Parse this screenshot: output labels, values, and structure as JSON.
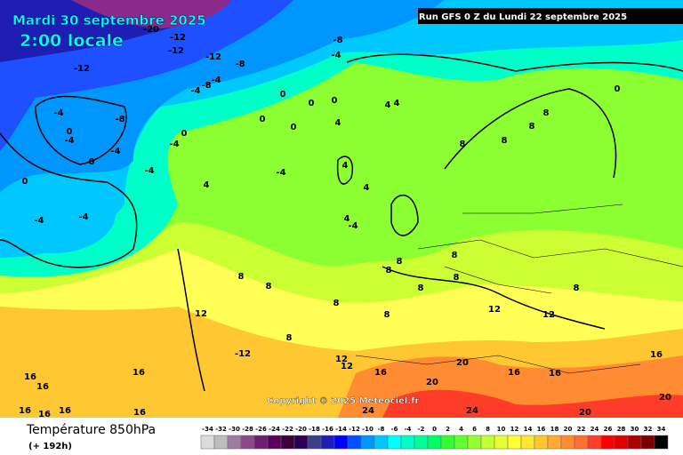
{
  "header": {
    "date": "Mardi 30 septembre 2025",
    "time": "2:00 locale",
    "run": "Run GFS 0 Z du Lundi 22 septembre 2025"
  },
  "copyright": "Copyright © 2025 Meteociel.fr",
  "footer": {
    "title": "Température 850hPa",
    "lead": "(+ 192h)"
  },
  "contour_labels": [
    -20,
    -12,
    -12,
    -12,
    -8,
    -8,
    -4,
    -12,
    -4,
    -8,
    -4,
    0,
    0,
    0,
    -8,
    -4,
    0,
    -4,
    -4,
    0,
    0,
    -4,
    -4,
    0,
    0,
    4,
    4,
    4,
    0,
    -4,
    -4,
    4,
    -4,
    4,
    4,
    4,
    -4,
    8,
    8,
    8,
    8,
    0,
    8,
    8,
    8,
    8,
    8,
    8,
    8,
    8,
    12,
    8,
    8,
    12,
    12,
    8,
    -12,
    12,
    12,
    16,
    20,
    16,
    16,
    16,
    16,
    16,
    16,
    20,
    20,
    24,
    24,
    20,
    16,
    16,
    16,
    16
  ],
  "scale": {
    "ticks": [
      -34,
      -32,
      -30,
      -28,
      -26,
      -24,
      -22,
      -20,
      -18,
      -16,
      -14,
      -12,
      -10,
      -8,
      -6,
      -4,
      -2,
      0,
      2,
      4,
      6,
      8,
      10,
      12,
      14,
      16,
      18,
      20,
      22,
      24,
      26,
      28,
      30,
      32,
      34
    ],
    "colors": [
      "#dcdcdc",
      "#bdbdbd",
      "#a07aa0",
      "#8a4a8a",
      "#6e1e6e",
      "#5a005a",
      "#3c003c",
      "#2a0050",
      "#3c3c8c",
      "#1e1eb4",
      "#0000ff",
      "#0050ff",
      "#0096ff",
      "#00c8ff",
      "#00ffff",
      "#00ffc8",
      "#00ff96",
      "#00ff64",
      "#32ff32",
      "#64ff32",
      "#96ff32",
      "#c8ff32",
      "#e6ff32",
      "#ffff32",
      "#ffe632",
      "#ffc832",
      "#ffaa32",
      "#ff8c32",
      "#ff6e32",
      "#ff3c28",
      "#ff0000",
      "#dc0000",
      "#aa0000",
      "#780000",
      "#000000"
    ]
  }
}
